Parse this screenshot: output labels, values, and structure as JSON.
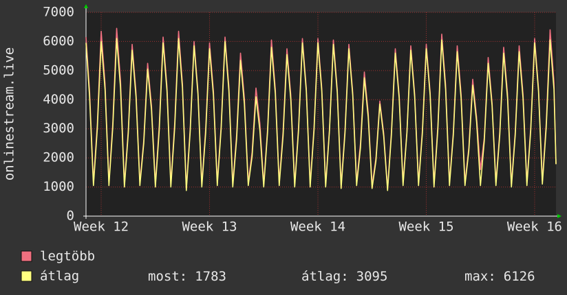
{
  "chart_data": {
    "type": "line",
    "y_label": "onlinestream.live",
    "xlim": [
      -0.98,
      29.38
    ],
    "xticks": [
      {
        "value": 0,
        "label": "Week 12"
      },
      {
        "value": 7,
        "label": "Week 13"
      },
      {
        "value": 14,
        "label": "Week 14"
      },
      {
        "value": 21,
        "label": "Week 15"
      },
      {
        "value": 28,
        "label": "Week 16"
      }
    ],
    "ylim": [
      0,
      7000
    ],
    "yticks": [
      0,
      1000,
      2000,
      3000,
      4000,
      5000,
      6000,
      7000
    ],
    "grid": true,
    "x": [
      -0.98,
      -0.75,
      -0.5,
      -0.25,
      0,
      0.25,
      0.5,
      0.75,
      1,
      1.25,
      1.5,
      1.75,
      2,
      2.25,
      2.5,
      2.75,
      3,
      3.25,
      3.5,
      3.75,
      4,
      4.25,
      4.5,
      4.75,
      5,
      5.25,
      5.5,
      5.75,
      6,
      6.25,
      6.5,
      6.75,
      7,
      7.25,
      7.5,
      7.75,
      8,
      8.25,
      8.5,
      8.75,
      9,
      9.25,
      9.5,
      9.75,
      10,
      10.25,
      10.5,
      10.75,
      11,
      11.25,
      11.5,
      11.75,
      12,
      12.25,
      12.5,
      12.75,
      13,
      13.25,
      13.5,
      13.75,
      14,
      14.25,
      14.5,
      14.75,
      15,
      15.25,
      15.5,
      15.75,
      16,
      16.25,
      16.5,
      16.75,
      17,
      17.25,
      17.5,
      17.75,
      18,
      18.25,
      18.5,
      18.75,
      19,
      19.25,
      19.5,
      19.75,
      20,
      20.25,
      20.5,
      20.75,
      21,
      21.25,
      21.5,
      21.75,
      22,
      22.25,
      22.5,
      22.75,
      23,
      23.25,
      23.5,
      23.75,
      24,
      24.25,
      24.5,
      24.75,
      25,
      25.25,
      25.5,
      25.75,
      26,
      26.25,
      26.5,
      26.75,
      27,
      27.25,
      27.5,
      27.75,
      28,
      28.25,
      28.5,
      28.75,
      29,
      29.25,
      29.38
    ],
    "series": [
      {
        "name": "legtöbb",
        "color": "#f07080",
        "values": [
          6150,
          4300,
          1150,
          3150,
          6350,
          4550,
          1150,
          3200,
          6450,
          4650,
          1100,
          2950,
          5900,
          4250,
          1150,
          2600,
          5250,
          3800,
          1100,
          3100,
          6150,
          4450,
          1100,
          3200,
          6350,
          4550,
          950,
          3000,
          6000,
          4300,
          1100,
          3000,
          5950,
          4300,
          1150,
          3100,
          6150,
          4450,
          1100,
          2800,
          5600,
          4050,
          1150,
          2200,
          4400,
          3200,
          1100,
          3000,
          6050,
          4350,
          1150,
          2900,
          5750,
          4150,
          1100,
          3050,
          6100,
          4400,
          1100,
          3050,
          6100,
          4400,
          1100,
          3000,
          6050,
          4350,
          1050,
          2950,
          5900,
          4250,
          1150,
          2500,
          4950,
          3550,
          1050,
          2000,
          3950,
          2850,
          950,
          2900,
          5750,
          4150,
          1150,
          2900,
          5850,
          4200,
          1150,
          2950,
          5900,
          4250,
          1100,
          3100,
          6250,
          4500,
          1150,
          2900,
          5850,
          4200,
          1150,
          2350,
          4700,
          3400,
          1600,
          2700,
          5450,
          3900,
          1150,
          2900,
          5800,
          4200,
          1100,
          2900,
          5850,
          4200,
          1150,
          3050,
          6100,
          4400,
          1200,
          3200,
          6400,
          4600,
          1800
        ]
      },
      {
        "name": "átlag",
        "color": "#ffff80",
        "values": [
          5950,
          4100,
          1050,
          3000,
          6000,
          4350,
          1050,
          3050,
          6100,
          4400,
          1000,
          2850,
          5700,
          4100,
          1050,
          2500,
          5050,
          3650,
          1000,
          2950,
          5950,
          4300,
          1000,
          3050,
          6100,
          4400,
          880,
          2900,
          5850,
          4200,
          1000,
          2850,
          5750,
          4150,
          1050,
          3000,
          6000,
          4300,
          1000,
          2650,
          5350,
          3850,
          1050,
          2050,
          4100,
          2950,
          1000,
          2900,
          5800,
          4200,
          1050,
          2750,
          5550,
          4000,
          1000,
          2950,
          5950,
          4300,
          1000,
          2950,
          5950,
          4300,
          1000,
          2950,
          5900,
          4250,
          950,
          2850,
          5750,
          4150,
          1050,
          2350,
          4750,
          3400,
          950,
          1900,
          3850,
          2750,
          880,
          2800,
          5600,
          4050,
          1050,
          2850,
          5700,
          4100,
          1050,
          2850,
          5750,
          4150,
          1000,
          3000,
          6050,
          4350,
          1050,
          2800,
          5650,
          4050,
          1050,
          2250,
          4500,
          3250,
          1050,
          2600,
          5250,
          3800,
          1050,
          2800,
          5600,
          4050,
          1000,
          2800,
          5650,
          4050,
          1050,
          2950,
          5950,
          4300,
          1100,
          3050,
          6050,
          4350,
          1783
        ]
      }
    ],
    "stats": [
      {
        "label": "most:",
        "value": 1783
      },
      {
        "label": "átlag:",
        "value": 3095
      },
      {
        "label": "max:",
        "value": 6126
      }
    ]
  }
}
